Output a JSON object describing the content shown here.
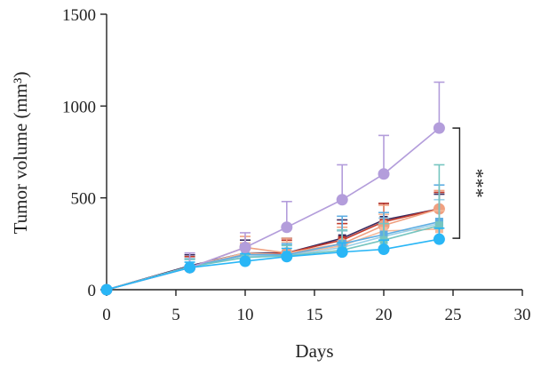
{
  "chart_data": {
    "type": "line",
    "xlabel": "Days",
    "ylabel": "Tumor volume (mm³)",
    "xlim": [
      0,
      30
    ],
    "ylim": [
      0,
      1500
    ],
    "xticks": [
      "0",
      "5",
      "10",
      "15",
      "20",
      "25",
      "30"
    ],
    "yticks": [
      "0",
      "500",
      "1000",
      "1500"
    ],
    "x": [
      0,
      6,
      10,
      13,
      17,
      20,
      24
    ],
    "grid": false,
    "significance": {
      "label": "***",
      "from_y": 880,
      "to_y": 280
    },
    "series": [
      {
        "color": "#3a2a5e",
        "marker": "square",
        "values": [
          0,
          130,
          200,
          200,
          280,
          380,
          440
        ],
        "errors": [
          0,
          60,
          70,
          80,
          100,
          90,
          80
        ]
      },
      {
        "color": "#c0392b",
        "marker": "square",
        "values": [
          0,
          125,
          190,
          200,
          270,
          370,
          440
        ],
        "errors": [
          0,
          55,
          65,
          70,
          90,
          100,
          90
        ]
      },
      {
        "color": "#f0a080",
        "marker": "circle",
        "values": [
          0,
          120,
          230,
          200,
          250,
          350,
          440
        ],
        "errors": [
          0,
          50,
          60,
          80,
          90,
          110,
          100
        ]
      },
      {
        "color": "#f5b99a",
        "marker": "square",
        "values": [
          0,
          125,
          200,
          190,
          240,
          320,
          330
        ],
        "errors": [
          0,
          45,
          55,
          70,
          80,
          90,
          100
        ]
      },
      {
        "color": "#9ad0e8",
        "marker": "square",
        "values": [
          0,
          125,
          180,
          185,
          230,
          290,
          360
        ],
        "errors": [
          0,
          45,
          50,
          60,
          90,
          100,
          130
        ]
      },
      {
        "color": "#5dade2",
        "marker": "square",
        "values": [
          0,
          125,
          190,
          190,
          250,
          300,
          370
        ],
        "errors": [
          0,
          40,
          55,
          60,
          150,
          120,
          200
        ]
      },
      {
        "color": "#76c5c0",
        "marker": "square",
        "values": [
          0,
          125,
          175,
          185,
          215,
          270,
          350
        ],
        "errors": [
          0,
          40,
          45,
          55,
          110,
          90,
          330
        ]
      },
      {
        "color": "#b39ddb",
        "marker": "circle",
        "values": [
          0,
          120,
          230,
          340,
          490,
          630,
          880
        ],
        "errors": [
          0,
          80,
          80,
          140,
          190,
          210,
          250
        ]
      },
      {
        "color": "#29b6f6",
        "marker": "circle",
        "values": [
          0,
          120,
          155,
          180,
          205,
          220,
          275
        ],
        "errors": [
          0,
          30,
          40,
          45,
          50,
          50,
          60
        ]
      }
    ]
  }
}
